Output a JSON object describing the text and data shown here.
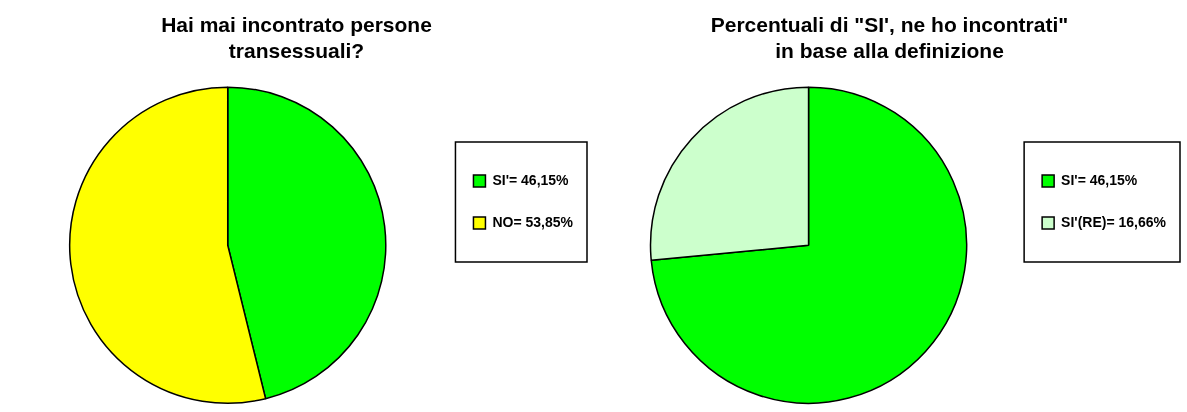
{
  "chart_data": [
    {
      "type": "pie",
      "title": "Hai mai incontrato persone\ntransessuali?",
      "categories": [
        "SI'= 46,15%",
        "NO= 53,85%"
      ],
      "values": [
        46.15,
        53.85
      ],
      "colors": [
        "#00ff00",
        "#ffff00"
      ],
      "legend": "right"
    },
    {
      "type": "pie",
      "title": "Percentuali di \"SI', ne ho incontrati\"\nin base alla definizione",
      "categories": [
        "SI'= 46,15%",
        "SI'(RE)= 16,66%"
      ],
      "values": [
        46.15,
        16.66
      ],
      "colors": [
        "#00ff00",
        "#ccffcc"
      ],
      "legend": "right"
    }
  ]
}
